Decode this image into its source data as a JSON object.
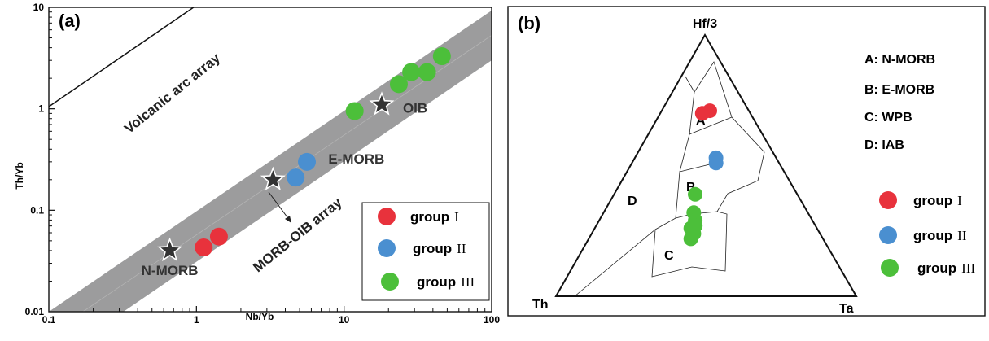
{
  "colors": {
    "group_I": "#e8323c",
    "group_II": "#4a8fd0",
    "group_III": "#4cbf3a",
    "array_band": "#9c9c9d",
    "star": "#333333"
  },
  "panel_a": {
    "label": "(a)",
    "xlabel": "Nb/Yb",
    "ylabel": "Th/Yb",
    "x_ticks": [
      "0.1",
      "1",
      "10",
      "100"
    ],
    "y_ticks": [
      "10",
      "1",
      "0.1",
      "0.01"
    ],
    "volcanic_label": "Volcanic arc array",
    "morb_oib_label": "MORB-OIB array",
    "legend": {
      "group_word": "group",
      "numerals": [
        "I",
        "II",
        "III"
      ]
    }
  },
  "panel_b": {
    "label": "(b)",
    "apex_top": "Hf/3",
    "apex_left": "Th",
    "apex_right": "Ta",
    "field_labels": [
      "A",
      "B",
      "C",
      "D"
    ],
    "key": [
      "A: N-MORB",
      "B: E-MORB",
      "C: WPB",
      "D: IAB"
    ],
    "legend": {
      "group_word": "group",
      "numerals": [
        "I",
        "II",
        "III"
      ]
    }
  },
  "chart_data": [
    {
      "type": "scatter",
      "xscale": "log",
      "yscale": "log",
      "xlim": [
        0.1,
        100
      ],
      "ylim": [
        0.01,
        10
      ],
      "xlabel": "Nb/Yb",
      "ylabel": "Th/Yb",
      "reference_points": [
        {
          "name": "N-MORB",
          "x": 0.66,
          "y": 0.04
        },
        {
          "name": "E-MORB",
          "x": 3.3,
          "y": 0.2
        },
        {
          "name": "OIB",
          "x": 18,
          "y": 1.1
        }
      ],
      "series": [
        {
          "name": "group I",
          "points": [
            [
              1.12,
              0.043
            ],
            [
              1.42,
              0.055
            ]
          ]
        },
        {
          "name": "group II",
          "points": [
            [
              4.7,
              0.21
            ],
            [
              5.6,
              0.3
            ]
          ]
        },
        {
          "name": "group III",
          "points": [
            [
              11.8,
              0.95
            ],
            [
              23.5,
              1.75
            ],
            [
              28.5,
              2.3
            ],
            [
              36.5,
              2.3
            ],
            [
              46,
              3.3
            ]
          ]
        }
      ]
    },
    {
      "type": "scatter",
      "subtype": "ternary",
      "axes": [
        "Hf/3",
        "Th",
        "Ta"
      ],
      "series": [
        {
          "name": "group I",
          "points": [
            [
              0.7,
              0.16,
              0.14
            ],
            [
              0.71,
              0.13,
              0.16
            ]
          ]
        },
        {
          "name": "group II",
          "points": [
            [
              0.53,
              0.2,
              0.27
            ],
            [
              0.51,
              0.21,
              0.28
            ]
          ]
        },
        {
          "name": "group III",
          "points": [
            [
              0.39,
              0.34,
              0.27
            ],
            [
              0.32,
              0.38,
              0.3
            ],
            [
              0.29,
              0.39,
              0.32
            ],
            [
              0.27,
              0.4,
              0.33
            ],
            [
              0.24,
              0.42,
              0.34
            ],
            [
              0.26,
              0.42,
              0.32
            ],
            [
              0.22,
              0.44,
              0.34
            ]
          ]
        }
      ]
    }
  ]
}
